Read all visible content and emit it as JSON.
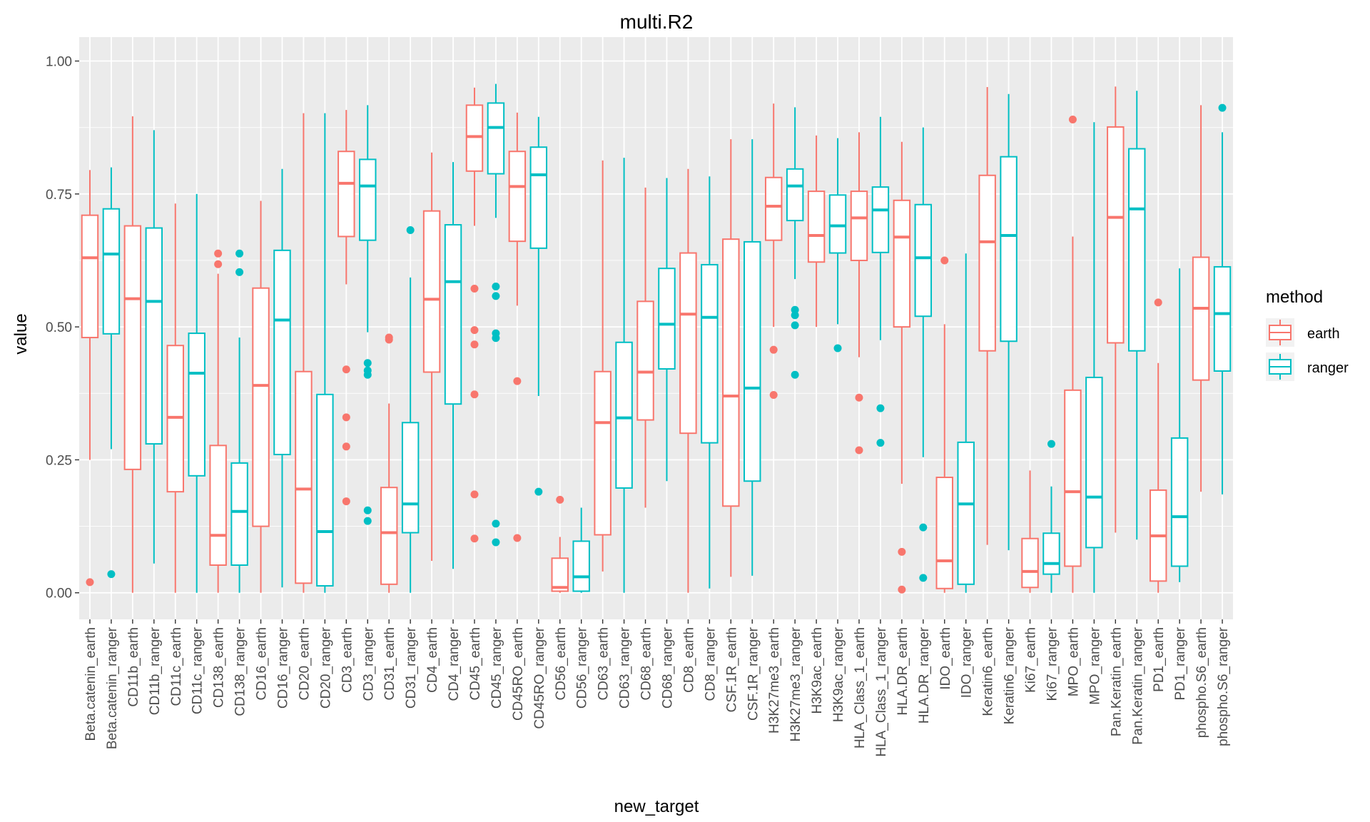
{
  "chart_data": {
    "type": "boxplot",
    "title": "multi.R2",
    "xlabel": "new_target",
    "ylabel": "value",
    "ylim": [
      -0.05,
      1.045
    ],
    "yticks": [
      "0.00",
      "0.25",
      "0.50",
      "0.75",
      "1.00"
    ],
    "ytick_values": [
      0,
      0.25,
      0.5,
      0.75,
      1.0
    ],
    "grid": true,
    "legend": {
      "title": "method",
      "position": "right",
      "entries": [
        {
          "name": "earth",
          "color": "#F8766D"
        },
        {
          "name": "ranger",
          "color": "#00BFC4"
        }
      ]
    },
    "colors": {
      "earth": "#F8766D",
      "ranger": "#00BFC4",
      "panel": "#EBEBEB",
      "grid": "#FFFFFF"
    },
    "boxes": [
      {
        "label": "Beta.catenin_earth",
        "method": "earth",
        "min": 0.25,
        "q1": 0.48,
        "median": 0.63,
        "q3": 0.71,
        "max": 0.795,
        "outliers": [
          0.02
        ]
      },
      {
        "label": "Beta.catenin_ranger",
        "method": "ranger",
        "min": 0.27,
        "q1": 0.487,
        "median": 0.637,
        "q3": 0.722,
        "max": 0.8,
        "outliers": [
          0.035
        ]
      },
      {
        "label": "CD11b_earth",
        "method": "earth",
        "min": 0.0,
        "q1": 0.232,
        "median": 0.553,
        "q3": 0.69,
        "max": 0.896,
        "outliers": []
      },
      {
        "label": "CD11b_ranger",
        "method": "ranger",
        "min": 0.055,
        "q1": 0.28,
        "median": 0.548,
        "q3": 0.686,
        "max": 0.87,
        "outliers": []
      },
      {
        "label": "CD11c_earth",
        "method": "earth",
        "min": 0.0,
        "q1": 0.19,
        "median": 0.33,
        "q3": 0.465,
        "max": 0.732,
        "outliers": []
      },
      {
        "label": "CD11c_ranger",
        "method": "ranger",
        "min": 0.0,
        "q1": 0.22,
        "median": 0.413,
        "q3": 0.488,
        "max": 0.75,
        "outliers": []
      },
      {
        "label": "CD138_earth",
        "method": "earth",
        "min": 0.0,
        "q1": 0.052,
        "median": 0.108,
        "q3": 0.277,
        "max": 0.6,
        "outliers": [
          0.618,
          0.638
        ]
      },
      {
        "label": "CD138_ranger",
        "method": "ranger",
        "min": 0.0,
        "q1": 0.052,
        "median": 0.153,
        "q3": 0.244,
        "max": 0.48,
        "outliers": [
          0.603,
          0.638
        ]
      },
      {
        "label": "CD16_earth",
        "method": "earth",
        "min": 0.0,
        "q1": 0.125,
        "median": 0.39,
        "q3": 0.573,
        "max": 0.737,
        "outliers": []
      },
      {
        "label": "CD16_ranger",
        "method": "ranger",
        "min": 0.01,
        "q1": 0.26,
        "median": 0.513,
        "q3": 0.644,
        "max": 0.797,
        "outliers": []
      },
      {
        "label": "CD20_earth",
        "method": "earth",
        "min": 0.0,
        "q1": 0.018,
        "median": 0.195,
        "q3": 0.416,
        "max": 0.902,
        "outliers": []
      },
      {
        "label": "CD20_ranger",
        "method": "ranger",
        "min": 0.0,
        "q1": 0.013,
        "median": 0.115,
        "q3": 0.373,
        "max": 0.902,
        "outliers": []
      },
      {
        "label": "CD3_earth",
        "method": "earth",
        "min": 0.58,
        "q1": 0.67,
        "median": 0.77,
        "q3": 0.83,
        "max": 0.908,
        "outliers": [
          0.42,
          0.33,
          0.275,
          0.172
        ]
      },
      {
        "label": "CD3_ranger",
        "method": "ranger",
        "min": 0.49,
        "q1": 0.663,
        "median": 0.765,
        "q3": 0.815,
        "max": 0.917,
        "outliers": [
          0.432,
          0.418,
          0.41,
          0.155,
          0.135
        ]
      },
      {
        "label": "CD31_earth",
        "method": "earth",
        "min": 0.0,
        "q1": 0.016,
        "median": 0.113,
        "q3": 0.198,
        "max": 0.356,
        "outliers": [
          0.476,
          0.48
        ]
      },
      {
        "label": "CD31_ranger",
        "method": "ranger",
        "min": 0.0,
        "q1": 0.113,
        "median": 0.167,
        "q3": 0.32,
        "max": 0.593,
        "outliers": [
          0.682
        ]
      },
      {
        "label": "CD4_earth",
        "method": "earth",
        "min": 0.06,
        "q1": 0.415,
        "median": 0.552,
        "q3": 0.718,
        "max": 0.828,
        "outliers": []
      },
      {
        "label": "CD4_ranger",
        "method": "ranger",
        "min": 0.045,
        "q1": 0.355,
        "median": 0.585,
        "q3": 0.692,
        "max": 0.81,
        "outliers": []
      },
      {
        "label": "CD45_earth",
        "method": "earth",
        "min": 0.69,
        "q1": 0.793,
        "median": 0.858,
        "q3": 0.917,
        "max": 0.95,
        "outliers": [
          0.572,
          0.494,
          0.467,
          0.373,
          0.185,
          0.102
        ]
      },
      {
        "label": "CD45_ranger",
        "method": "ranger",
        "min": 0.705,
        "q1": 0.788,
        "median": 0.875,
        "q3": 0.921,
        "max": 0.957,
        "outliers": [
          0.576,
          0.558,
          0.488,
          0.479,
          0.13,
          0.095
        ]
      },
      {
        "label": "CD45RO_earth",
        "method": "earth",
        "min": 0.54,
        "q1": 0.661,
        "median": 0.764,
        "q3": 0.83,
        "max": 0.903,
        "outliers": [
          0.398,
          0.103
        ]
      },
      {
        "label": "CD45RO_ranger",
        "method": "ranger",
        "min": 0.37,
        "q1": 0.648,
        "median": 0.786,
        "q3": 0.838,
        "max": 0.895,
        "outliers": [
          0.19
        ]
      },
      {
        "label": "CD56_earth",
        "method": "earth",
        "min": 0.0,
        "q1": 0.003,
        "median": 0.01,
        "q3": 0.065,
        "max": 0.105,
        "outliers": [
          0.175
        ]
      },
      {
        "label": "CD56_ranger",
        "method": "ranger",
        "min": 0.0,
        "q1": 0.003,
        "median": 0.03,
        "q3": 0.097,
        "max": 0.16,
        "outliers": []
      },
      {
        "label": "CD63_earth",
        "method": "earth",
        "min": 0.04,
        "q1": 0.109,
        "median": 0.32,
        "q3": 0.416,
        "max": 0.813,
        "outliers": []
      },
      {
        "label": "CD63_ranger",
        "method": "ranger",
        "min": 0.0,
        "q1": 0.197,
        "median": 0.329,
        "q3": 0.471,
        "max": 0.818,
        "outliers": []
      },
      {
        "label": "CD68_earth",
        "method": "earth",
        "min": 0.16,
        "q1": 0.325,
        "median": 0.415,
        "q3": 0.548,
        "max": 0.762,
        "outliers": []
      },
      {
        "label": "CD68_ranger",
        "method": "ranger",
        "min": 0.21,
        "q1": 0.421,
        "median": 0.505,
        "q3": 0.61,
        "max": 0.78,
        "outliers": []
      },
      {
        "label": "CD8_earth",
        "method": "earth",
        "min": 0.0,
        "q1": 0.3,
        "median": 0.524,
        "q3": 0.639,
        "max": 0.797,
        "outliers": []
      },
      {
        "label": "CD8_ranger",
        "method": "ranger",
        "min": 0.008,
        "q1": 0.282,
        "median": 0.518,
        "q3": 0.617,
        "max": 0.783,
        "outliers": []
      },
      {
        "label": "CSF.1R_earth",
        "method": "earth",
        "min": 0.03,
        "q1": 0.163,
        "median": 0.37,
        "q3": 0.665,
        "max": 0.853,
        "outliers": []
      },
      {
        "label": "CSF.1R_ranger",
        "method": "ranger",
        "min": 0.032,
        "q1": 0.21,
        "median": 0.385,
        "q3": 0.66,
        "max": 0.853,
        "outliers": []
      },
      {
        "label": "H3K27me3_earth",
        "method": "earth",
        "min": 0.5,
        "q1": 0.663,
        "median": 0.727,
        "q3": 0.781,
        "max": 0.92,
        "outliers": [
          0.457,
          0.372
        ]
      },
      {
        "label": "H3K27me3_ranger",
        "method": "ranger",
        "min": 0.59,
        "q1": 0.7,
        "median": 0.765,
        "q3": 0.797,
        "max": 0.913,
        "outliers": [
          0.532,
          0.522,
          0.503,
          0.41
        ]
      },
      {
        "label": "H3K9ac_earth",
        "method": "earth",
        "min": 0.5,
        "q1": 0.622,
        "median": 0.672,
        "q3": 0.755,
        "max": 0.86,
        "outliers": []
      },
      {
        "label": "H3K9ac_ranger",
        "method": "ranger",
        "min": 0.505,
        "q1": 0.639,
        "median": 0.69,
        "q3": 0.748,
        "max": 0.855,
        "outliers": [
          0.46
        ]
      },
      {
        "label": "HLA_Class_1_earth",
        "method": "earth",
        "min": 0.443,
        "q1": 0.625,
        "median": 0.705,
        "q3": 0.755,
        "max": 0.866,
        "outliers": [
          0.367,
          0.268
        ]
      },
      {
        "label": "HLA_Class_1_ranger",
        "method": "ranger",
        "min": 0.475,
        "q1": 0.64,
        "median": 0.72,
        "q3": 0.763,
        "max": 0.895,
        "outliers": [
          0.347,
          0.282
        ]
      },
      {
        "label": "HLA.DR_earth",
        "method": "earth",
        "min": 0.205,
        "q1": 0.5,
        "median": 0.669,
        "q3": 0.738,
        "max": 0.848,
        "outliers": [
          0.077,
          0.006
        ]
      },
      {
        "label": "HLA.DR_ranger",
        "method": "ranger",
        "min": 0.255,
        "q1": 0.52,
        "median": 0.63,
        "q3": 0.73,
        "max": 0.875,
        "outliers": [
          0.123,
          0.028
        ]
      },
      {
        "label": "IDO_earth",
        "method": "earth",
        "min": 0.0,
        "q1": 0.008,
        "median": 0.06,
        "q3": 0.217,
        "max": 0.505,
        "outliers": [
          0.625
        ]
      },
      {
        "label": "IDO_ranger",
        "method": "ranger",
        "min": 0.0,
        "q1": 0.016,
        "median": 0.167,
        "q3": 0.283,
        "max": 0.638,
        "outliers": []
      },
      {
        "label": "Keratin6_earth",
        "method": "earth",
        "min": 0.09,
        "q1": 0.455,
        "median": 0.66,
        "q3": 0.785,
        "max": 0.951,
        "outliers": []
      },
      {
        "label": "Keratin6_ranger",
        "method": "ranger",
        "min": 0.08,
        "q1": 0.473,
        "median": 0.672,
        "q3": 0.82,
        "max": 0.938,
        "outliers": []
      },
      {
        "label": "Ki67_earth",
        "method": "earth",
        "min": 0.0,
        "q1": 0.01,
        "median": 0.04,
        "q3": 0.102,
        "max": 0.23,
        "outliers": []
      },
      {
        "label": "Ki67_ranger",
        "method": "ranger",
        "min": 0.0,
        "q1": 0.035,
        "median": 0.055,
        "q3": 0.112,
        "max": 0.2,
        "outliers": [
          0.28
        ]
      },
      {
        "label": "MPO_earth",
        "method": "earth",
        "min": 0.0,
        "q1": 0.05,
        "median": 0.19,
        "q3": 0.381,
        "max": 0.67,
        "outliers": [
          0.89
        ]
      },
      {
        "label": "MPO_ranger",
        "method": "ranger",
        "min": 0.0,
        "q1": 0.085,
        "median": 0.18,
        "q3": 0.405,
        "max": 0.885,
        "outliers": []
      },
      {
        "label": "Pan.Keratin_earth",
        "method": "earth",
        "min": 0.113,
        "q1": 0.47,
        "median": 0.706,
        "q3": 0.876,
        "max": 0.952,
        "outliers": []
      },
      {
        "label": "Pan.Keratin_ranger",
        "method": "ranger",
        "min": 0.1,
        "q1": 0.455,
        "median": 0.722,
        "q3": 0.835,
        "max": 0.944,
        "outliers": []
      },
      {
        "label": "PD1_earth",
        "method": "earth",
        "min": 0.0,
        "q1": 0.022,
        "median": 0.107,
        "q3": 0.193,
        "max": 0.432,
        "outliers": [
          0.546
        ]
      },
      {
        "label": "PD1_ranger",
        "method": "ranger",
        "min": 0.02,
        "q1": 0.05,
        "median": 0.143,
        "q3": 0.291,
        "max": 0.61,
        "outliers": []
      },
      {
        "label": "phospho.S6_earth",
        "method": "earth",
        "min": 0.19,
        "q1": 0.4,
        "median": 0.535,
        "q3": 0.631,
        "max": 0.917,
        "outliers": []
      },
      {
        "label": "phospho.S6_ranger",
        "method": "ranger",
        "min": 0.185,
        "q1": 0.417,
        "median": 0.525,
        "q3": 0.613,
        "max": 0.866,
        "outliers": [
          0.912
        ]
      }
    ]
  }
}
